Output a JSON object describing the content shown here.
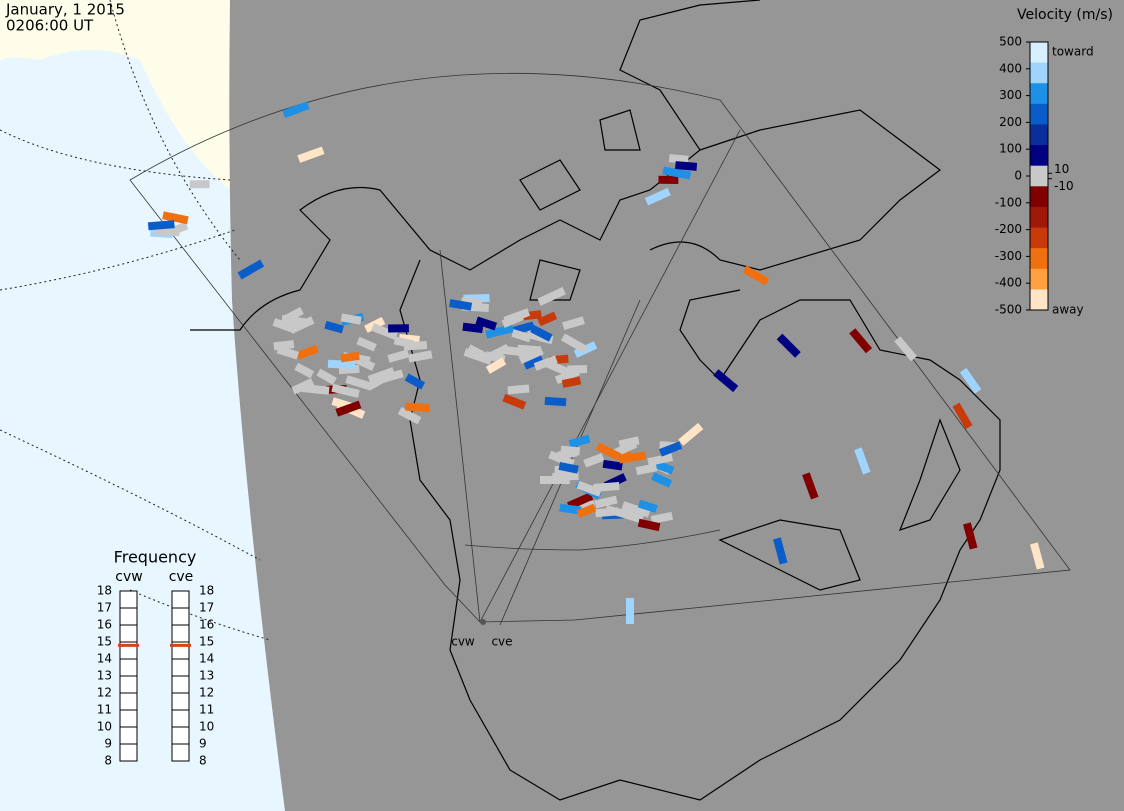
{
  "header": {
    "date": "January, 1 2015",
    "time": "0206:00 UT"
  },
  "chart_data": [
    {
      "type": "colorbar",
      "title": "Velocity (m/s)",
      "ylim": [
        -500,
        500
      ],
      "yticks": [
        500,
        400,
        300,
        200,
        100,
        0,
        -100,
        -200,
        -300,
        -400,
        -500
      ],
      "rticks": [
        10,
        -10
      ],
      "top_label": "toward",
      "bottom_label": "away",
      "colors": [
        "#d8efff",
        "#9fd4ff",
        "#1e90e6",
        "#0a5cc8",
        "#0a2f9a",
        "#000080",
        "#c8c8c8",
        "#800000",
        "#a01808",
        "#c83a0a",
        "#f07010",
        "#ffa040",
        "#ffe4c8"
      ]
    },
    {
      "type": "gauge",
      "title": "Frequency",
      "categories": [
        "cvw",
        "cve"
      ],
      "values": [
        14.8,
        14.8
      ],
      "color": "#d04818",
      "ylim": [
        8,
        18
      ],
      "yticks": [
        8,
        9,
        10,
        11,
        12,
        13,
        14,
        15,
        16,
        17,
        18
      ]
    }
  ],
  "radars": [
    "cvw",
    "cve"
  ]
}
